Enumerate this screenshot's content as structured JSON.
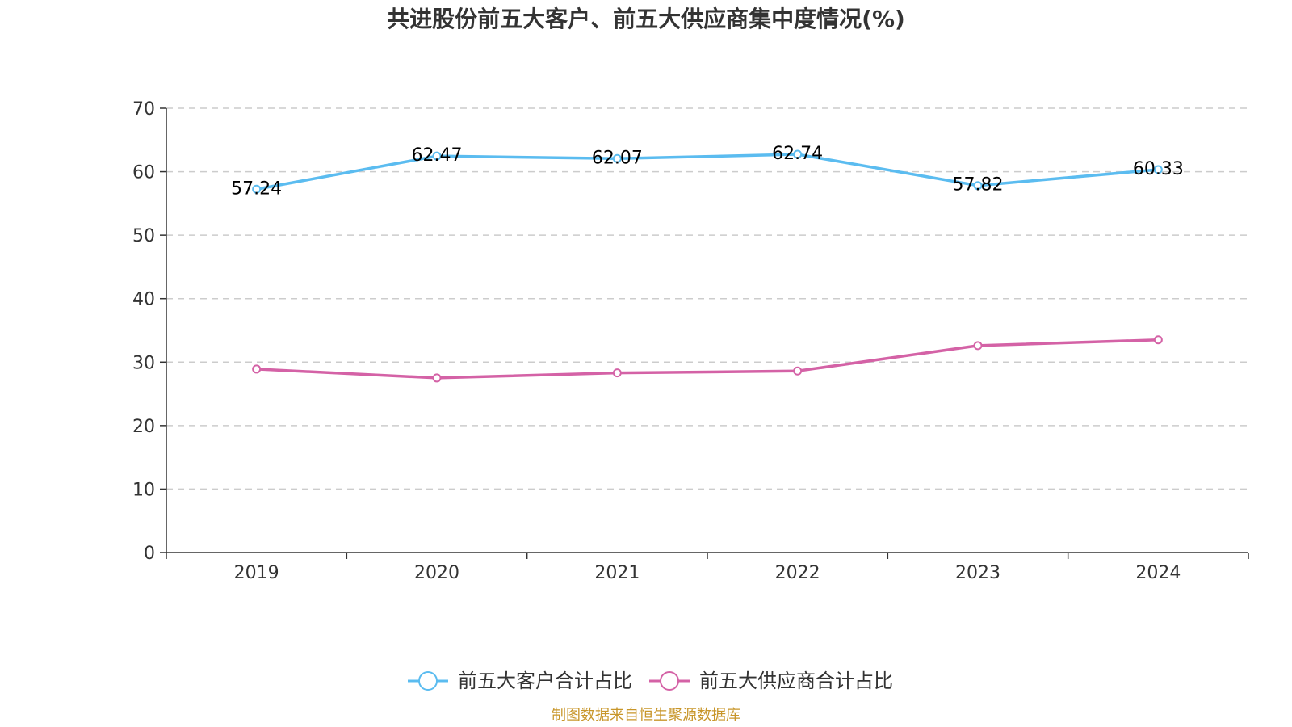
{
  "chart_data": {
    "type": "line",
    "title": "共进股份前五大客户、前五大供应商集中度情况(%)",
    "categories": [
      "2019",
      "2020",
      "2021",
      "2022",
      "2023",
      "2024"
    ],
    "series": [
      {
        "name": "前五大客户合计占比",
        "values": [
          57.24,
          62.47,
          62.07,
          62.74,
          57.82,
          60.33
        ],
        "value_labels": [
          "57.24",
          "62.47",
          "62.07",
          "62.74",
          "57.82",
          "60.33"
        ],
        "color": "#5bbcf0",
        "show_labels": true
      },
      {
        "name": "前五大供应商合计占比",
        "values": [
          28.9,
          27.5,
          28.3,
          28.6,
          32.6,
          33.5
        ],
        "color": "#d462a6",
        "show_labels": false
      }
    ],
    "ylim": [
      0,
      70
    ],
    "yticks": [
      "0",
      "10",
      "20",
      "30",
      "40",
      "50",
      "60",
      "70"
    ],
    "grid": true,
    "legend_position": "bottom"
  },
  "source_note": "制图数据来自恒生聚源数据库"
}
